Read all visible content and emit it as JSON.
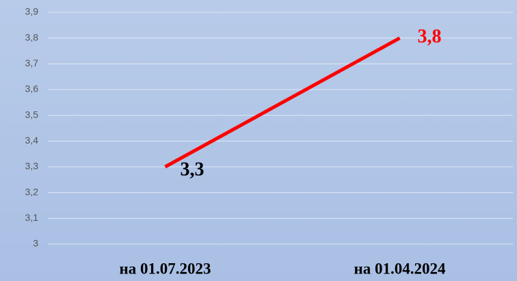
{
  "chart_data": {
    "type": "line",
    "categories": [
      "на 01.07.2023",
      "на 01.04.2024"
    ],
    "values": [
      3.3,
      3.8
    ],
    "value_labels": [
      "3,3",
      "3,8"
    ],
    "value_label_colors": [
      "#000000",
      "#ff0000"
    ],
    "color": "#ff0000",
    "ylim": [
      3,
      3.9
    ],
    "yticks": [
      3,
      {
        "value": 3.1,
        "label": "3,1"
      },
      {
        "value": 3.2,
        "label": "3,2"
      },
      {
        "value": 3.3,
        "label": "3,3"
      },
      {
        "value": 3.4,
        "label": "3,4"
      },
      {
        "value": 3.5,
        "label": "3,5"
      },
      {
        "value": 3.6,
        "label": "3,6"
      },
      {
        "value": 3.7,
        "label": "3,7"
      },
      {
        "value": 3.8,
        "label": "3,8"
      },
      {
        "value": 3.9,
        "label": "3,9"
      }
    ],
    "grid": true
  }
}
